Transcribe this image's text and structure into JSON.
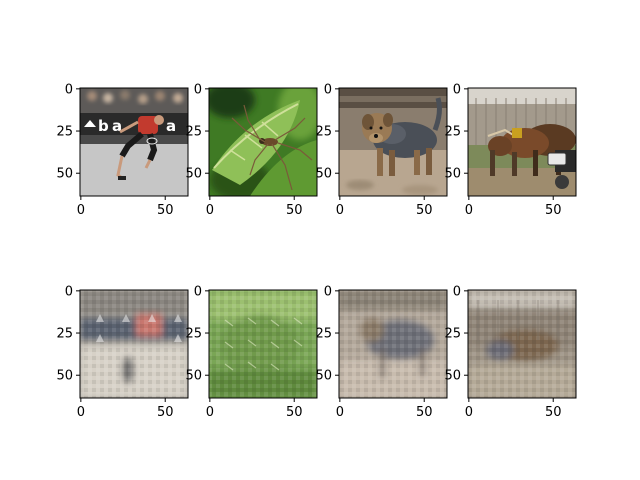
{
  "figure": {
    "grid": "2 rows x 4 columns",
    "panels": [
      {
        "row": 0,
        "col": 0,
        "content": "tennis player lunging on a court, sponsor banner behind",
        "palette": [
          "#6b6b6b",
          "#c23a2e",
          "#2b2b2b",
          "#d9d9d9"
        ]
      },
      {
        "row": 0,
        "col": 1,
        "content": "insect on green leaves",
        "palette": [
          "#3f7a24",
          "#7fb44a",
          "#cfe09a",
          "#1e3d12"
        ]
      },
      {
        "row": 0,
        "col": 2,
        "content": "scruffy terrier dog standing on ground",
        "palette": [
          "#8a7d6e",
          "#4a4f57",
          "#b8a690",
          "#2e2e2e"
        ]
      },
      {
        "row": 0,
        "col": 3,
        "content": "team of oxen with cart beside a wooden fence",
        "palette": [
          "#7a4a2a",
          "#a39a8c",
          "#4f3a28",
          "#7d8a5a"
        ]
      },
      {
        "row": 1,
        "col": 0,
        "content": "blurry reconstruction of tennis scene",
        "palette": [
          "#9a948c",
          "#c9776e",
          "#5a6270",
          "#d7d1c7"
        ]
      },
      {
        "row": 1,
        "col": 1,
        "content": "blurry reconstruction of insect scene",
        "palette": [
          "#6f9a4c",
          "#9cc070",
          "#c6d7a0",
          "#4e7434"
        ]
      },
      {
        "row": 1,
        "col": 2,
        "content": "blurry reconstruction of dog scene",
        "palette": [
          "#a59a8e",
          "#6e7078",
          "#c8bcae",
          "#8a8276"
        ]
      },
      {
        "row": 1,
        "col": 3,
        "content": "blurry reconstruction of oxen scene",
        "palette": [
          "#8e8376",
          "#6a6a74",
          "#b5aa98",
          "#7c6650"
        ]
      }
    ],
    "x_ticks": [
      "0",
      "50"
    ],
    "y_ticks": [
      "0",
      "25",
      "50"
    ]
  }
}
